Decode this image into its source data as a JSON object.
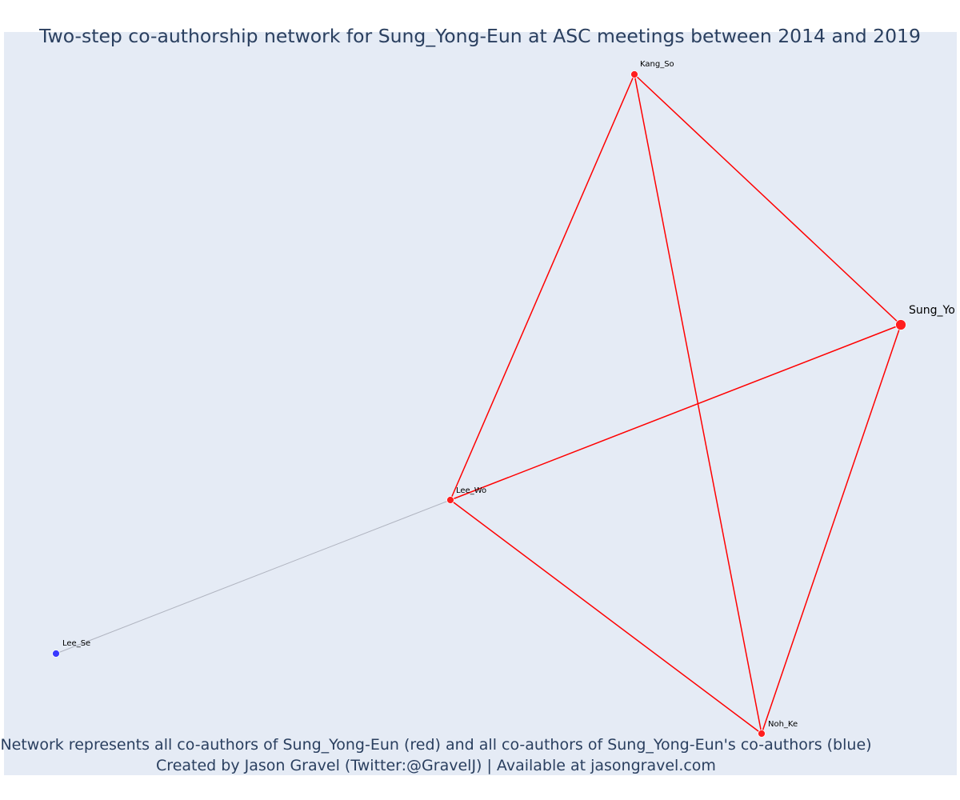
{
  "title": "Two-step co-authorship network for Sung_Yong-Eun at ASC meetings between 2014 and 2019",
  "footer": {
    "line1": "Network represents all co-authors of Sung_Yong-Eun (red) and all co-authors of Sung_Yong-Eun's co-authors (blue)",
    "line2": "Created by Jason Gravel (Twitter:@GravelJ) | Available at jasongravel.com"
  },
  "colors": {
    "background": "#e5ebf5",
    "direct_coauthor": "#ff1e1e",
    "second_step": "#3a3aff",
    "red_edge": "#ff0000",
    "grey_edge": "#b0b4c0"
  },
  "network": {
    "nodes": [
      {
        "id": "Sung_Yo",
        "label": "Sung_Yo",
        "group": "ego"
      },
      {
        "id": "Kang_So",
        "label": "Kang_So",
        "group": "red"
      },
      {
        "id": "Lee_Wo",
        "label": "Lee_Wo",
        "group": "red"
      },
      {
        "id": "Noh_Ke",
        "label": "Noh_Ke",
        "group": "red"
      },
      {
        "id": "Lee_Se",
        "label": "Lee_Se",
        "group": "blue"
      }
    ],
    "edges": [
      {
        "source": "Kang_So",
        "target": "Lee_Wo",
        "color": "red"
      },
      {
        "source": "Kang_So",
        "target": "Sung_Yo",
        "color": "red"
      },
      {
        "source": "Kang_So",
        "target": "Noh_Ke",
        "color": "red"
      },
      {
        "source": "Lee_Wo",
        "target": "Sung_Yo",
        "color": "red"
      },
      {
        "source": "Lee_Wo",
        "target": "Noh_Ke",
        "color": "red"
      },
      {
        "source": "Sung_Yo",
        "target": "Noh_Ke",
        "color": "red"
      },
      {
        "source": "Lee_Wo",
        "target": "Lee_Se",
        "color": "grey"
      }
    ]
  }
}
